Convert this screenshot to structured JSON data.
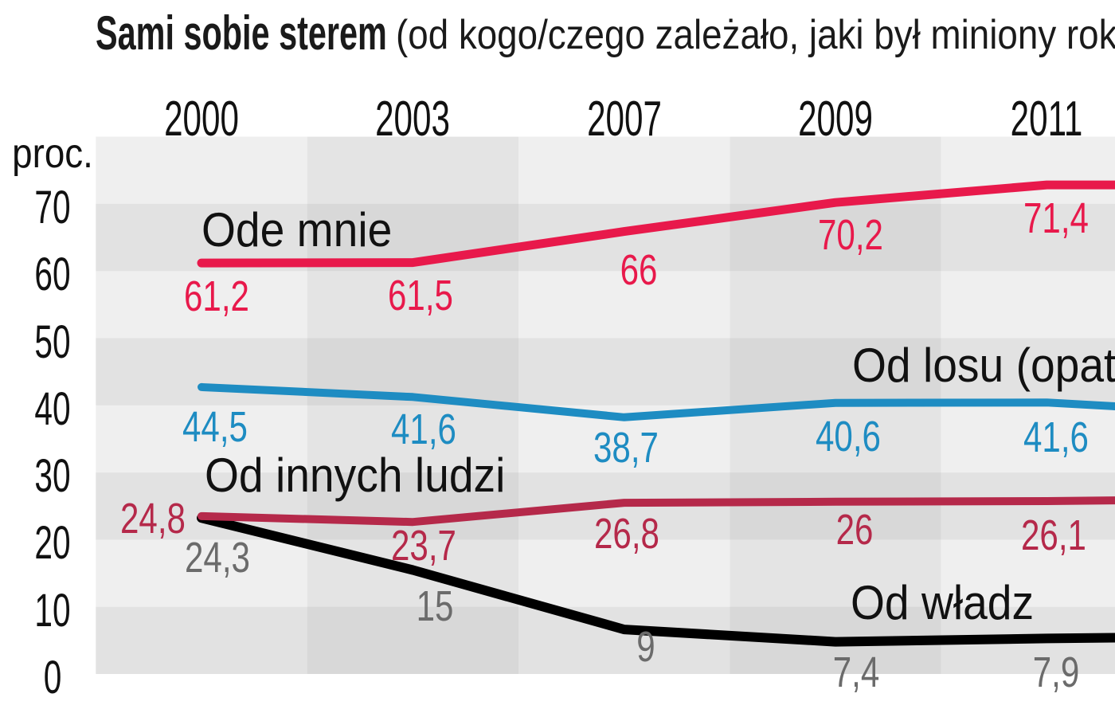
{
  "title": "Sami sobie sterem",
  "subtitle": "(od kogo/czego zależało, jaki był miniony rok",
  "y_axis": {
    "unit_label": "proc.",
    "ticks": [
      "70",
      "60",
      "50",
      "40",
      "30",
      "20",
      "10",
      "0"
    ]
  },
  "x_axis": {
    "years": [
      "2000",
      "2003",
      "2007",
      "2009",
      "2011"
    ]
  },
  "chart_data": {
    "type": "line",
    "title": "Sami sobie sterem (od kogo/czego zależało, jaki był miniony rok",
    "ylabel": "proc.",
    "ylim": [
      0,
      80
    ],
    "categories": [
      "2000",
      "2003",
      "2007",
      "2009",
      "2011"
    ],
    "legend_position": "labels-on-chart",
    "grid": "alternating gray checkerboard bands",
    "series": [
      {
        "name": "Ode mnie",
        "color": "#e8194b",
        "label_color": "#e8194b",
        "values": [
          61.2,
          61.5,
          66,
          70.2,
          71.4
        ],
        "point_labels": [
          "61,2",
          "61,5",
          "66",
          "70,2",
          "71,4"
        ]
      },
      {
        "name": "Od losu (opat",
        "color": "#1e8cc2",
        "label_color": "#1e8cc2",
        "values": [
          44.5,
          41.6,
          38.7,
          40.6,
          41.6
        ],
        "point_labels": [
          "44,5",
          "41,6",
          "38,7",
          "40,6",
          "41,6"
        ]
      },
      {
        "name": "Od innych ludzi",
        "color": "#b5294a",
        "label_color": "#b5294a",
        "values": [
          24.8,
          23.7,
          26.8,
          26,
          26.1
        ],
        "point_labels": [
          "24,8",
          "23,7",
          "26,8",
          "26",
          "26,1"
        ]
      },
      {
        "name": "Od władz",
        "color": "#000000",
        "label_color": "#6b6b6b",
        "values": [
          24.3,
          15,
          9,
          7.4,
          7.9
        ],
        "point_labels": [
          "24,3",
          "15",
          "9",
          "7,4",
          "7,9"
        ]
      }
    ]
  }
}
